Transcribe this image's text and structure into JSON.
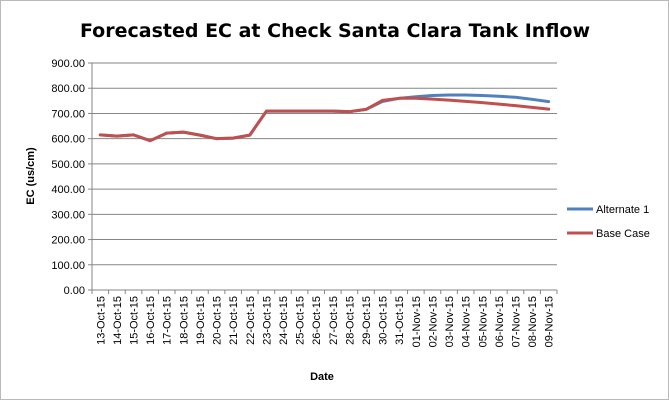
{
  "chart_data": {
    "type": "line",
    "title": "Forecasted EC at Check Santa Clara Tank Inflow",
    "xlabel": "Date",
    "ylabel": "EC (us/cm)",
    "ylim": [
      0,
      900
    ],
    "y_ticks": [
      "0.00",
      "100.00",
      "200.00",
      "300.00",
      "400.00",
      "500.00",
      "600.00",
      "700.00",
      "800.00",
      "900.00"
    ],
    "grid": "horizontal",
    "legend_position": "right",
    "categories": [
      "13-Oct-15",
      "14-Oct-15",
      "15-Oct-15",
      "16-Oct-15",
      "17-Oct-15",
      "18-Oct-15",
      "19-Oct-15",
      "20-Oct-15",
      "21-Oct-15",
      "22-Oct-15",
      "23-Oct-15",
      "24-Oct-15",
      "25-Oct-15",
      "26-Oct-15",
      "27-Oct-15",
      "28-Oct-15",
      "29-Oct-15",
      "30-Oct-15",
      "31-Oct-15",
      "01-Nov-15",
      "02-Nov-15",
      "03-Nov-15",
      "04-Nov-15",
      "05-Nov-15",
      "06-Nov-15",
      "07-Nov-15",
      "08-Nov-15",
      "09-Nov-15"
    ],
    "series": [
      {
        "name": "Alternate 1",
        "color": "#4f81bd",
        "values": [
          615,
          610,
          615,
          592,
          622,
          626,
          614,
          600,
          602,
          614,
          709,
          709,
          709,
          709,
          709,
          707,
          716,
          748,
          760,
          766,
          771,
          773,
          773,
          771,
          768,
          764,
          756,
          747
        ]
      },
      {
        "name": "Base Case",
        "color": "#c0504d",
        "values": [
          615,
          610,
          615,
          592,
          622,
          626,
          614,
          600,
          602,
          614,
          709,
          709,
          709,
          709,
          709,
          707,
          716,
          752,
          760,
          760,
          757,
          753,
          748,
          743,
          737,
          731,
          724,
          717
        ]
      }
    ]
  }
}
